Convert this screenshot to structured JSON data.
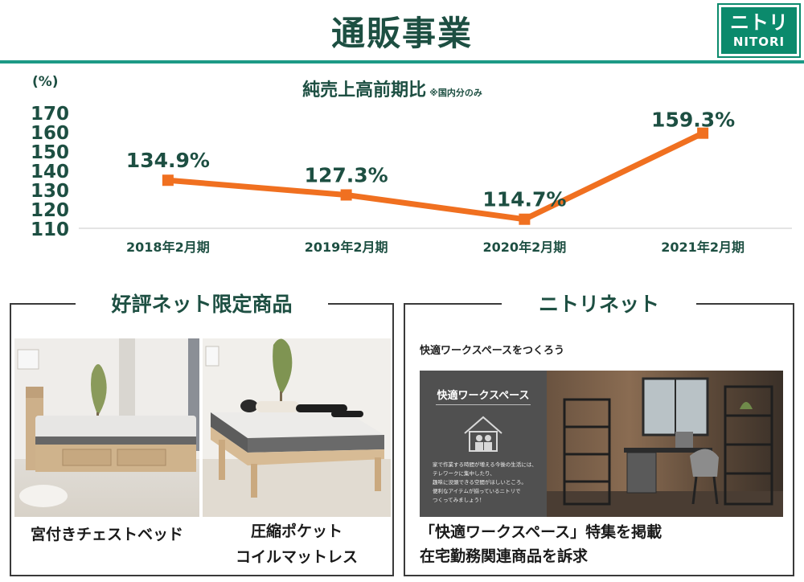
{
  "header": {
    "title": "通販事業",
    "logo_kana": "ニトリ",
    "logo_latin": "NITORI",
    "accent_color": "#1c9a86",
    "logo_color": "#0b8a6c"
  },
  "chart_data": {
    "type": "line",
    "title": "純売上高前期比",
    "title_note": "※国内分のみ",
    "ylabel": "(%)",
    "categories": [
      "2018年2月期",
      "2019年2月期",
      "2020年2月期",
      "2021年2月期"
    ],
    "values": [
      134.9,
      127.3,
      114.7,
      159.3
    ],
    "data_labels": [
      "134.9%",
      "127.3%",
      "114.7%",
      "159.3%"
    ],
    "ylim": [
      110,
      170
    ],
    "yticks": [
      110,
      120,
      130,
      140,
      150,
      160,
      170
    ],
    "line_color": "#f07020",
    "grid": false,
    "legend": "none"
  },
  "panel_products": {
    "title": "好評ネット限定商品",
    "items": [
      {
        "name": "宮付きチェストベッド",
        "icon": "storage-bed-photo"
      },
      {
        "name_line1": "圧縮ポケット",
        "name_line2": "コイルマットレス",
        "icon": "mattress-bed-photo"
      }
    ]
  },
  "panel_net": {
    "title": "ニトリネット",
    "subtitle": "快適ワークスペースをつくろう",
    "banner_title": "快適ワークスペース",
    "banner_body": [
      "家で作業する時間が増える今後の生活には、",
      "テレワークに集中したり、",
      "趣味に没頭できる空間がほしいところ。",
      "便利なアイテムが揃っているニトリで",
      "つくってみましょう！"
    ],
    "caption_line1": "「快適ワークスペース」特集を掲載",
    "caption_line2": "在宅勤務関連商品を訴求"
  }
}
